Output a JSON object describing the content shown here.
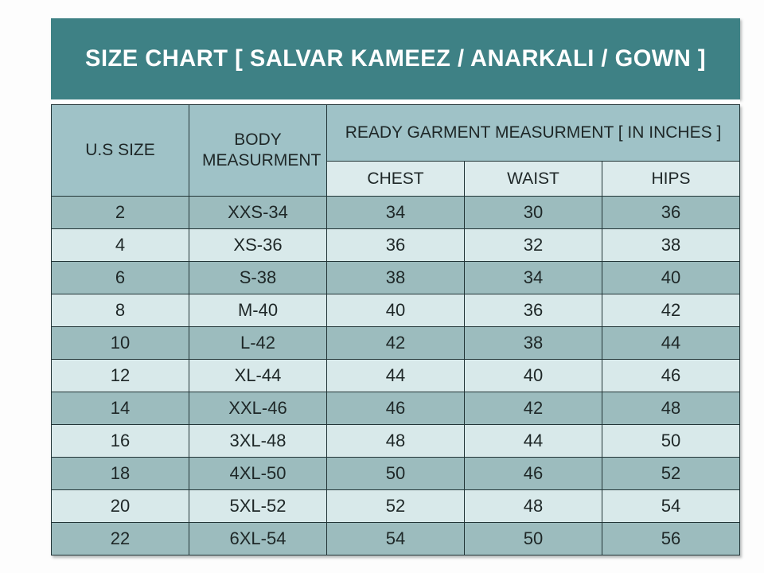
{
  "title": "SIZE CHART [ SALVAR KAMEEZ / ANARKALI / GOWN ]",
  "chart_data": {
    "type": "table",
    "title": "SIZE CHART [ SALVAR KAMEEZ / ANARKALI / GOWN ]",
    "header": {
      "us_size": "U.S SIZE",
      "body_measurement": "BODY MEASURMENT",
      "ready_garment": "READY GARMENT MEASURMENT [ IN INCHES ]",
      "chest": "CHEST",
      "waist": "WAIST",
      "hips": "HIPS"
    },
    "columns": [
      "U.S SIZE",
      "BODY MEASURMENT",
      "CHEST",
      "WAIST",
      "HIPS"
    ],
    "rows": [
      {
        "us_size": "2",
        "body": "XXS-34",
        "chest": "34",
        "waist": "30",
        "hips": "36"
      },
      {
        "us_size": "4",
        "body": "XS-36",
        "chest": "36",
        "waist": "32",
        "hips": "38"
      },
      {
        "us_size": "6",
        "body": "S-38",
        "chest": "38",
        "waist": "34",
        "hips": "40"
      },
      {
        "us_size": "8",
        "body": "M-40",
        "chest": "40",
        "waist": "36",
        "hips": "42"
      },
      {
        "us_size": "10",
        "body": "L-42",
        "chest": "42",
        "waist": "38",
        "hips": "44"
      },
      {
        "us_size": "12",
        "body": "XL-44",
        "chest": "44",
        "waist": "40",
        "hips": "46"
      },
      {
        "us_size": "14",
        "body": "XXL-46",
        "chest": "46",
        "waist": "42",
        "hips": "48"
      },
      {
        "us_size": "16",
        "body": "3XL-48",
        "chest": "48",
        "waist": "44",
        "hips": "50"
      },
      {
        "us_size": "18",
        "body": "4XL-50",
        "chest": "50",
        "waist": "46",
        "hips": "52"
      },
      {
        "us_size": "20",
        "body": "5XL-52",
        "chest": "52",
        "waist": "48",
        "hips": "54"
      },
      {
        "us_size": "22",
        "body": "6XL-54",
        "chest": "54",
        "waist": "50",
        "hips": "56"
      }
    ]
  },
  "colors": {
    "banner": "#3e8185",
    "title_text": "#ffffff",
    "header": "#9fc2c7",
    "subheader": "#dcebec",
    "row_dark": "#9cbcbe",
    "row_light": "#d8e9ea",
    "border": "#223537",
    "text": "#1e2727"
  }
}
